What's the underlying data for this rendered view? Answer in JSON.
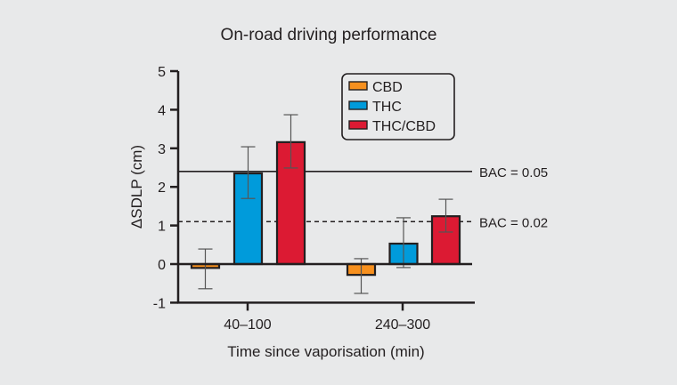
{
  "chart_data": {
    "type": "bar",
    "title": "On-road driving performance",
    "xlabel": "Time since vaporisation (min)",
    "ylabel": "ΔSDLP (cm)",
    "ylim": [
      -1,
      5
    ],
    "yticks": [
      -1,
      0,
      1,
      2,
      3,
      4,
      5
    ],
    "grid": false,
    "legend_position": "top-right",
    "categories": [
      "40–100",
      "240–300"
    ],
    "series": [
      {
        "name": "CBD",
        "color": "#f7901e",
        "values": [
          -0.1,
          -0.28
        ],
        "error_low": [
          -0.64,
          -0.76
        ],
        "error_high": [
          0.39,
          0.14
        ]
      },
      {
        "name": "THC",
        "color": "#009bdb",
        "values": [
          2.35,
          0.53
        ],
        "error_low": [
          1.7,
          -0.09
        ],
        "error_high": [
          3.04,
          1.2
        ]
      },
      {
        "name": "THC/CBD",
        "color": "#dc1a33",
        "values": [
          3.16,
          1.24
        ],
        "error_low": [
          2.49,
          0.83
        ],
        "error_high": [
          3.87,
          1.68
        ]
      }
    ],
    "reference_lines": [
      {
        "label": "BAC = 0.05",
        "value": 2.4,
        "style": "solid"
      },
      {
        "label": "BAC = 0.02",
        "value": 1.1,
        "style": "dashed"
      }
    ]
  }
}
